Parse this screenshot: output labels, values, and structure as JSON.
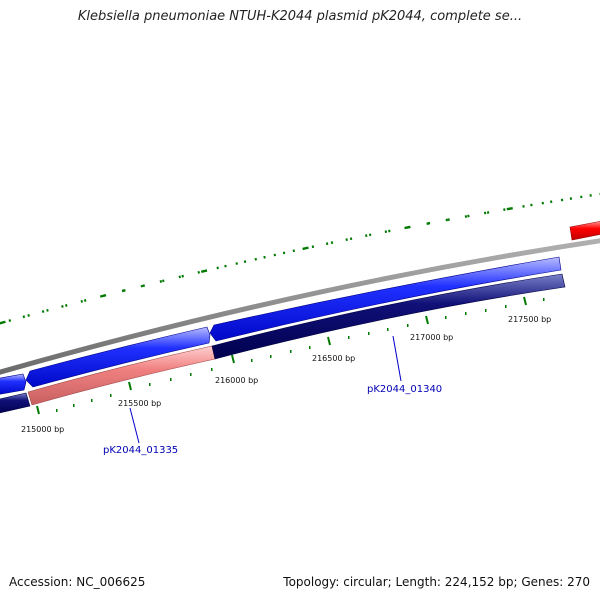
{
  "title": "Klebsiella pneumoniae NTUH-K2044 plasmid pK2044, complete se...",
  "footer": {
    "accession": "Accession: NC_006625",
    "summary": "Topology: circular; Length: 224,152 bp; Genes: 270"
  },
  "scale_ticks": [
    {
      "label": "215000 bp"
    },
    {
      "label": "215500 bp"
    },
    {
      "label": "216000 bp"
    },
    {
      "label": "216500 bp"
    },
    {
      "label": "217000 bp"
    },
    {
      "label": "217500 bp"
    }
  ],
  "gene_labels": [
    {
      "label": "pK2044_01335"
    },
    {
      "label": "pK2044_01340"
    }
  ],
  "colors": {
    "backbone": "#808080",
    "forward_gene": "#0a14ff",
    "reverse_gene": "#000080",
    "highlight_gene": "#f08080",
    "selected_gene": "#ff0000",
    "gc_marks": "#007a00",
    "gene_label": "#0000b4"
  }
}
